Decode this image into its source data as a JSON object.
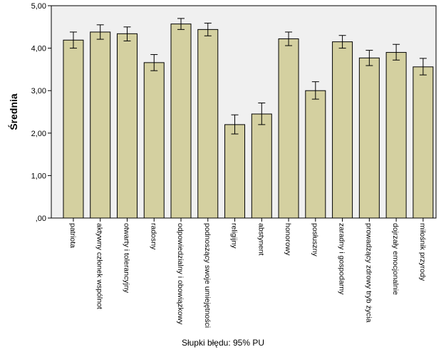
{
  "chart_data": {
    "type": "bar",
    "title": "",
    "xlabel": "",
    "ylabel": "Średnia",
    "ylim": [
      0,
      5
    ],
    "yticks": [
      0,
      1,
      2,
      3,
      4,
      5
    ],
    "ytick_labels": [
      ",00",
      "1,00",
      "2,00",
      "3,00",
      "4,00",
      "5,00"
    ],
    "grid": false,
    "legend": "none",
    "bar_color": "#d4d0a0",
    "plot_background": "#f0f0f0",
    "error_bars": true,
    "footnote": "Słupki błędu: 95% PU",
    "categories": [
      "patriota",
      "aktywny członek wspólnot",
      "otwarty i tolerancyjny",
      "radosny",
      "odpowiedzialny i obowiązkowy",
      "podnoszący swoje umiejętności",
      "religijny",
      "abstynent",
      "honorowy",
      "posłuszny",
      "zaradny i gospodarny",
      "prowadzący zdrowy tryb życia",
      "dojrzały emocjonalnie",
      "miłośnik przyrody"
    ],
    "values": [
      4.19,
      4.38,
      4.34,
      3.66,
      4.57,
      4.44,
      2.2,
      2.45,
      4.22,
      3.0,
      4.15,
      3.77,
      3.9,
      3.56
    ],
    "err_low": [
      4.0,
      4.21,
      4.17,
      3.47,
      4.44,
      4.29,
      1.98,
      2.2,
      4.06,
      2.8,
      4.0,
      3.59,
      3.72,
      3.37
    ],
    "err_high": [
      4.38,
      4.55,
      4.5,
      3.85,
      4.7,
      4.59,
      2.43,
      2.71,
      4.38,
      3.21,
      4.3,
      3.95,
      4.09,
      3.76
    ]
  }
}
